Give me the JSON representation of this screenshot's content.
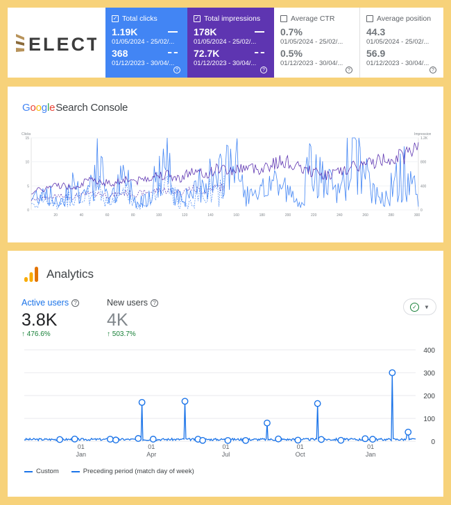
{
  "brand": {
    "name": "ELECT"
  },
  "search_console_metrics": [
    {
      "label": "Total clicks",
      "checked": true,
      "current_value": "1.19K",
      "current_range": "01/05/2024 - 25/02/...",
      "previous_value": "368",
      "previous_range": "01/12/2023 - 30/04/..."
    },
    {
      "label": "Total impressions",
      "checked": true,
      "current_value": "178K",
      "current_range": "01/05/2024 - 25/02/...",
      "previous_value": "72.7K",
      "previous_range": "01/12/2023 - 30/04/..."
    },
    {
      "label": "Average CTR",
      "checked": false,
      "current_value": "0.7%",
      "current_range": "01/05/2024 - 25/02/...",
      "previous_value": "0.5%",
      "previous_range": "01/12/2023 - 30/04/..."
    },
    {
      "label": "Average position",
      "checked": false,
      "current_value": "44.3",
      "current_range": "01/05/2024 - 25/02/...",
      "previous_value": "56.9",
      "previous_range": "01/12/2023 - 30/04/..."
    }
  ],
  "search_console": {
    "logo_google": "Google",
    "logo_product": "Search Console"
  },
  "analytics": {
    "title": "Analytics",
    "metrics": [
      {
        "label": "Active users",
        "value": "3.8K",
        "change": "476.6%"
      },
      {
        "label": "New users",
        "value": "4K",
        "change": "503.7%"
      }
    ],
    "legend": [
      {
        "label": "Custom"
      },
      {
        "label": "Preceding period (match day of week)"
      }
    ]
  },
  "colors": {
    "clicks": "#4285f4",
    "impressions": "#5e35b1",
    "analytics_line": "#1a73e8",
    "positive": "#188038"
  },
  "chart_data": [
    {
      "type": "line",
      "title": "",
      "ylabel_left": "Clicks",
      "ylabel_right": "Impressions",
      "y_ticks_left": [
        "15",
        "10",
        "5",
        "0"
      ],
      "y_ticks_right": [
        "1.2K",
        "800",
        "400",
        "0"
      ],
      "x_ticks": [
        "20",
        "40",
        "60",
        "80",
        "100",
        "120",
        "140",
        "160",
        "180",
        "200",
        "220",
        "240",
        "260",
        "280",
        "300"
      ],
      "ylim_left": [
        0,
        15
      ],
      "ylim_right": [
        0,
        1200
      ],
      "series": [
        {
          "name": "Clicks",
          "values": [
            2,
            4,
            1,
            5,
            3,
            8,
            2,
            6,
            1,
            4,
            9,
            3,
            2,
            7,
            5,
            11,
            3,
            2,
            6,
            4,
            1,
            8,
            5,
            3,
            12,
            6,
            2,
            4,
            7,
            3
          ]
        },
        {
          "name": "Impressions",
          "values": [
            300,
            350,
            420,
            380,
            460,
            500,
            430,
            520,
            480,
            560,
            600,
            520,
            640,
            580,
            700,
            650,
            720,
            680,
            760,
            820,
            700,
            640,
            580,
            620,
            700,
            760,
            820,
            880,
            900,
            1150
          ]
        }
      ]
    },
    {
      "type": "line",
      "title": "",
      "y_ticks": [
        "400",
        "300",
        "200",
        "100",
        "0"
      ],
      "ylim": [
        0,
        400
      ],
      "x_ticks": [
        {
          "day": "01",
          "month": "Jan"
        },
        {
          "day": "01",
          "month": "Apr"
        },
        {
          "day": "01",
          "month": "Jul"
        },
        {
          "day": "01",
          "month": "Oct"
        },
        {
          "day": "01",
          "month": "Jan"
        }
      ],
      "series": [
        {
          "name": "Custom",
          "peaks": [
            {
              "pos": 0.3,
              "value": 170
            },
            {
              "pos": 0.41,
              "value": 175
            },
            {
              "pos": 0.62,
              "value": 80
            },
            {
              "pos": 0.75,
              "value": 165
            },
            {
              "pos": 0.94,
              "value": 300
            },
            {
              "pos": 0.98,
              "value": 40
            }
          ]
        },
        {
          "name": "Preceding period (match day of week)",
          "peaks": []
        }
      ]
    }
  ]
}
